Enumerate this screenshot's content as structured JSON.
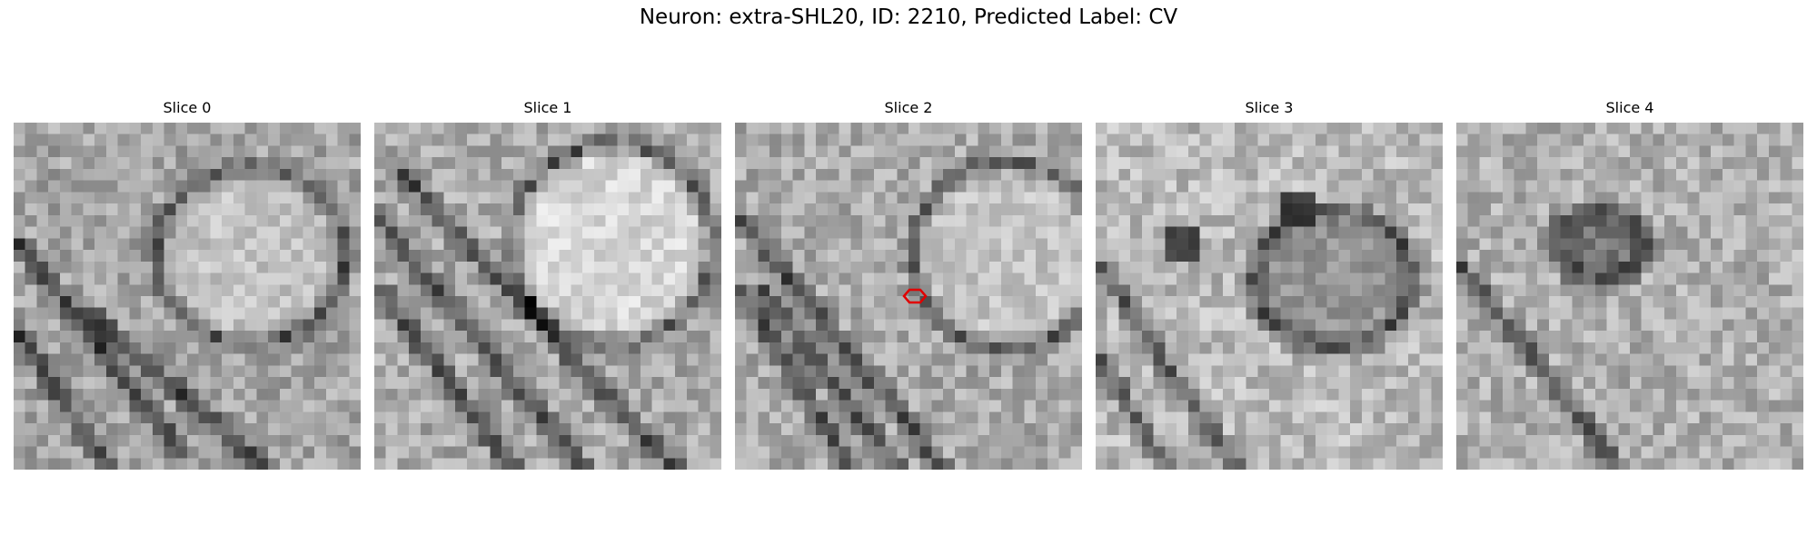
{
  "figure": {
    "title": "Neuron: extra-SHL20, ID: 2210, Predicted Label: CV"
  },
  "panels": [
    {
      "title": "Slice 0"
    },
    {
      "title": "Slice 1"
    },
    {
      "title": "Slice 2"
    },
    {
      "title": "Slice 3"
    },
    {
      "title": "Slice 4"
    }
  ],
  "colors": {
    "background": "#ffffff",
    "marker": "#e00000",
    "image_colormap": "grayscale"
  }
}
